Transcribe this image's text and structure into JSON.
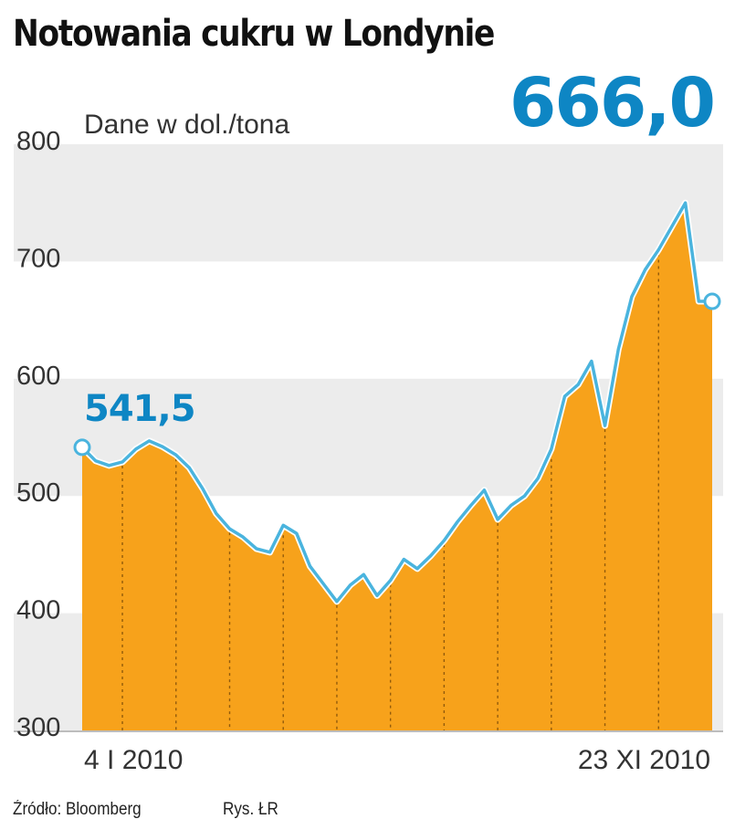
{
  "title": "Notowania cukru w Londynie",
  "source": "Źródło: Bloomberg",
  "credit": "Rys. ŁR",
  "colors": {
    "fill": "#f7a21b",
    "line": "#4ab4de",
    "label": "#0e86c4",
    "band": "#ececec",
    "axis_text": "#333333"
  },
  "chart_data": {
    "type": "area",
    "title": "Notowania cukru w Londynie",
    "unit_label": "Dane w dol./tona",
    "ylim": [
      300,
      800
    ],
    "yticks": [
      300,
      400,
      500,
      600,
      700,
      800
    ],
    "xlim": [
      0,
      47
    ],
    "x_tick_labels": [
      {
        "x": 1,
        "label": "4 I 2010"
      },
      {
        "x": 45,
        "label": "23 XI 2010"
      }
    ],
    "grid": "alternating horizontal bands",
    "annotations": [
      {
        "text": "541,5",
        "x": 0,
        "y": 541.5,
        "emphasis": "start"
      },
      {
        "text": "666,0",
        "x": 47,
        "y": 666.0,
        "emphasis": "end"
      }
    ],
    "x": [
      0,
      1,
      2,
      3,
      4,
      5,
      6,
      7,
      8,
      9,
      10,
      11,
      12,
      13,
      14,
      15,
      16,
      17,
      18,
      19,
      20,
      21,
      22,
      23,
      24,
      25,
      26,
      27,
      28,
      29,
      30,
      31,
      32,
      33,
      34,
      35,
      36,
      37,
      38,
      39,
      40,
      41,
      42,
      43,
      44,
      45,
      46,
      47
    ],
    "values": [
      541.5,
      530,
      526,
      529,
      540,
      547,
      542,
      535,
      524,
      506,
      485,
      472,
      465,
      455,
      452,
      475,
      468,
      440,
      425,
      410,
      424,
      433,
      415,
      428,
      446,
      438,
      449,
      462,
      478,
      492,
      505,
      480,
      492,
      500,
      515,
      540,
      585,
      595,
      615,
      560,
      625,
      670,
      693,
      710,
      730,
      750,
      666,
      666
    ]
  }
}
